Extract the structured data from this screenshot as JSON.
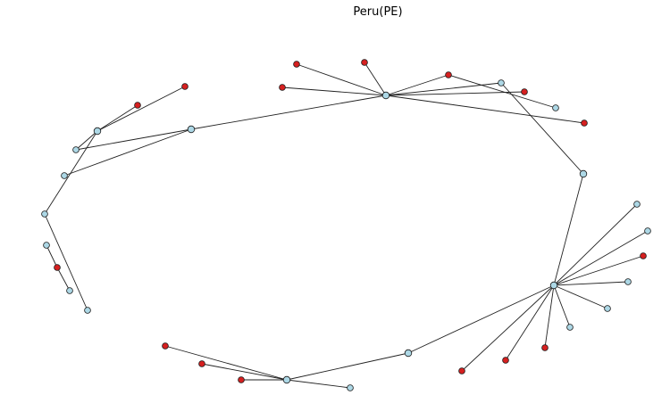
{
  "title": "Peru(PE)",
  "colors": {
    "node_blue": "#add8e6",
    "node_red": "#d62020",
    "edge": "#222222",
    "node_stroke": "#1a1a1a"
  },
  "graph": {
    "nodes": [
      {
        "id": "h_top",
        "kind": "blue"
      },
      {
        "id": "h_left",
        "kind": "blue"
      },
      {
        "id": "h_mid_left",
        "kind": "blue"
      },
      {
        "id": "h_right",
        "kind": "blue"
      },
      {
        "id": "h_bottom",
        "kind": "blue"
      },
      {
        "id": "h_bottom_mid",
        "kind": "blue"
      },
      {
        "id": "h_right_upper",
        "kind": "blue"
      },
      {
        "id": "n_top_a",
        "kind": "red"
      },
      {
        "id": "n_top_b",
        "kind": "red"
      },
      {
        "id": "n_top_c",
        "kind": "red"
      },
      {
        "id": "n_top_d",
        "kind": "red"
      },
      {
        "id": "n_top_e",
        "kind": "red"
      },
      {
        "id": "n_top_f",
        "kind": "red"
      },
      {
        "id": "n_top_blue1",
        "kind": "blue"
      },
      {
        "id": "n_top_blue2",
        "kind": "blue"
      },
      {
        "id": "n_left_r1",
        "kind": "red"
      },
      {
        "id": "n_left_r2",
        "kind": "red"
      },
      {
        "id": "n_left_b1",
        "kind": "blue"
      },
      {
        "id": "n_left_b2",
        "kind": "blue"
      },
      {
        "id": "n_far_left",
        "kind": "blue"
      },
      {
        "id": "n_ll_b1",
        "kind": "blue"
      },
      {
        "id": "n_ll_r",
        "kind": "red"
      },
      {
        "id": "n_ll_b2",
        "kind": "blue"
      },
      {
        "id": "n_ll_b3",
        "kind": "blue"
      },
      {
        "id": "n_r_b1",
        "kind": "blue"
      },
      {
        "id": "n_r_b2",
        "kind": "blue"
      },
      {
        "id": "n_r_r1",
        "kind": "red"
      },
      {
        "id": "n_r_b3",
        "kind": "blue"
      },
      {
        "id": "n_r_b4",
        "kind": "blue"
      },
      {
        "id": "n_r_b5",
        "kind": "blue"
      },
      {
        "id": "n_r_r2",
        "kind": "red"
      },
      {
        "id": "n_r_r3",
        "kind": "red"
      },
      {
        "id": "n_r_r4",
        "kind": "red"
      },
      {
        "id": "n_b_r1",
        "kind": "red"
      },
      {
        "id": "n_b_r2",
        "kind": "red"
      },
      {
        "id": "n_b_r3",
        "kind": "red"
      },
      {
        "id": "n_b_b1",
        "kind": "blue"
      }
    ],
    "edges": [
      [
        "h_top",
        "n_top_a"
      ],
      [
        "h_top",
        "n_top_b"
      ],
      [
        "h_top",
        "n_top_c"
      ],
      [
        "h_top",
        "n_top_d"
      ],
      [
        "h_top",
        "n_top_e"
      ],
      [
        "h_top",
        "n_top_blue1"
      ],
      [
        "h_top",
        "n_top_f"
      ],
      [
        "h_top",
        "h_mid_left"
      ],
      [
        "n_top_d",
        "n_top_blue2"
      ],
      [
        "n_top_blue1",
        "h_right_upper"
      ],
      [
        "h_right_upper",
        "h_right"
      ],
      [
        "h_mid_left",
        "n_left_b1"
      ],
      [
        "h_mid_left",
        "n_left_b2"
      ],
      [
        "h_left",
        "n_left_r1"
      ],
      [
        "h_left",
        "n_left_r2"
      ],
      [
        "h_left",
        "n_left_b1"
      ],
      [
        "h_left",
        "n_far_left"
      ],
      [
        "n_far_left",
        "n_ll_b3"
      ],
      [
        "n_ll_b1",
        "n_ll_r"
      ],
      [
        "n_ll_r",
        "n_ll_b2"
      ],
      [
        "h_right",
        "n_r_b1"
      ],
      [
        "h_right",
        "n_r_b2"
      ],
      [
        "h_right",
        "n_r_r1"
      ],
      [
        "h_right",
        "n_r_b3"
      ],
      [
        "h_right",
        "n_r_b4"
      ],
      [
        "h_right",
        "n_r_b5"
      ],
      [
        "h_right",
        "n_r_r2"
      ],
      [
        "h_right",
        "n_r_r3"
      ],
      [
        "h_right",
        "n_r_r4"
      ],
      [
        "h_right",
        "h_bottom_mid"
      ],
      [
        "h_bottom_mid",
        "h_bottom"
      ],
      [
        "h_bottom",
        "n_b_r1"
      ],
      [
        "h_bottom",
        "n_b_r2"
      ],
      [
        "h_bottom",
        "n_b_r3"
      ],
      [
        "h_bottom",
        "n_b_b1"
      ]
    ]
  }
}
